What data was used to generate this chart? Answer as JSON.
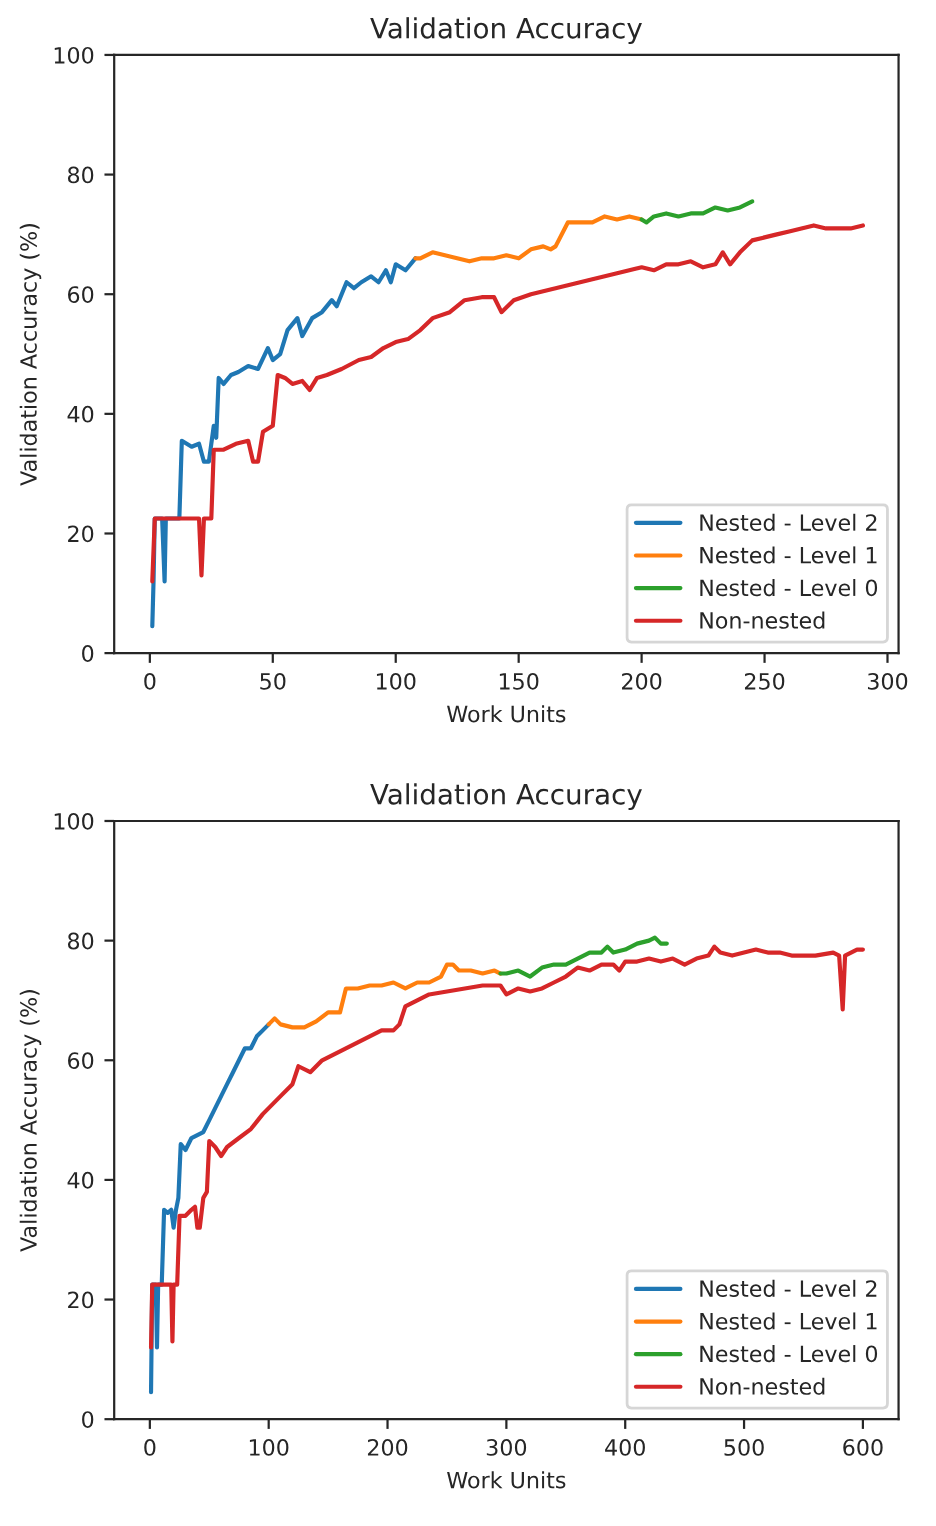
{
  "chart_data": [
    {
      "type": "line",
      "title": "Validation Accuracy",
      "xlabel": "Work Units",
      "ylabel": "Validation Accuracy (%)",
      "xlim": [
        -14.5,
        304.5
      ],
      "xticks": [
        0,
        50,
        100,
        150,
        200,
        250,
        300
      ],
      "ylim": [
        0,
        100
      ],
      "yticks": [
        0,
        20,
        40,
        60,
        80,
        100
      ],
      "grid": false,
      "legend": "bottom right",
      "series": [
        {
          "name": "Nested - Level 2",
          "color": "#1f77b4",
          "x": [
            1,
            1.5,
            2,
            3,
            5,
            6,
            6.5,
            10,
            12,
            13,
            15,
            17,
            20,
            22,
            24,
            25,
            26,
            27,
            28,
            30,
            33,
            36,
            40,
            44,
            48,
            50,
            53,
            56,
            60,
            62,
            66,
            70,
            74,
            76,
            80,
            83,
            86,
            90,
            93,
            96,
            98,
            100,
            104,
            108
          ],
          "values": [
            4.5,
            12,
            22.5,
            22.5,
            22.5,
            12,
            22.5,
            22.5,
            22.5,
            35.5,
            35,
            34.5,
            35,
            32,
            32,
            35,
            38,
            36,
            46,
            45,
            46.5,
            47,
            48,
            47.5,
            51,
            49,
            50,
            54,
            56,
            53,
            56,
            57,
            59,
            58,
            62,
            61,
            62,
            63,
            62,
            64,
            62,
            65,
            64,
            66
          ]
        },
        {
          "name": "Nested - Level 1",
          "color": "#ff7f0e",
          "x": [
            108,
            110,
            115,
            120,
            125,
            130,
            135,
            140,
            145,
            150,
            155,
            160,
            163,
            165,
            170,
            175,
            180,
            185,
            190,
            195,
            200
          ],
          "values": [
            66,
            66,
            67,
            66.5,
            66,
            65.5,
            66,
            66,
            66.5,
            66,
            67.5,
            68,
            67.5,
            68,
            72,
            72,
            72,
            73,
            72.5,
            73,
            72.5
          ]
        },
        {
          "name": "Nested - Level 0",
          "color": "#2ca02c",
          "x": [
            200,
            202,
            205,
            210,
            215,
            220,
            225,
            230,
            235,
            240,
            245
          ],
          "values": [
            72.5,
            72,
            73,
            73.5,
            73,
            73.5,
            73.5,
            74.5,
            74,
            74.5,
            75.5
          ]
        },
        {
          "name": "Non-nested",
          "color": "#d62728",
          "x": [
            1,
            2,
            5,
            10,
            15,
            20,
            21,
            22,
            25,
            26,
            30,
            35,
            40,
            42,
            44,
            46,
            50,
            52,
            55,
            58,
            62,
            65,
            68,
            72,
            78,
            85,
            90,
            95,
            100,
            105,
            110,
            115,
            122,
            128,
            135,
            140,
            143,
            148,
            155,
            160,
            165,
            170,
            175,
            180,
            185,
            190,
            195,
            200,
            205,
            210,
            215,
            220,
            225,
            230,
            233,
            236,
            240,
            245,
            250,
            255,
            260,
            265,
            270,
            275,
            280,
            285,
            290
          ],
          "values": [
            12,
            22.5,
            22.5,
            22.5,
            22.5,
            22.5,
            13,
            22.5,
            22.5,
            34,
            34,
            35,
            35.5,
            32,
            32,
            37,
            38,
            46.5,
            46,
            45,
            45.5,
            44,
            46,
            46.5,
            47.5,
            49,
            49.5,
            51,
            52,
            52.5,
            54,
            56,
            57,
            59,
            59.5,
            59.5,
            57,
            59,
            60,
            60.5,
            61,
            61.5,
            62,
            62.5,
            63,
            63.5,
            64,
            64.5,
            64,
            65,
            65,
            65.5,
            64.5,
            65,
            67,
            65,
            67,
            69,
            69.5,
            70,
            70.5,
            71,
            71.5,
            71,
            71,
            71,
            71.5
          ]
        }
      ]
    },
    {
      "type": "line",
      "title": "Validation Accuracy",
      "xlabel": "Work Units",
      "ylabel": "Validation Accuracy (%)",
      "xlim": [
        -30,
        630
      ],
      "xticks": [
        0,
        100,
        200,
        300,
        400,
        500,
        600
      ],
      "ylim": [
        0,
        100
      ],
      "yticks": [
        0,
        20,
        40,
        60,
        80,
        100
      ],
      "grid": false,
      "legend": "bottom right",
      "series": [
        {
          "name": "Nested - Level 2",
          "color": "#1f77b4",
          "x": [
            1,
            2,
            5,
            6,
            7,
            10,
            12,
            15,
            18,
            20,
            22,
            24,
            26,
            30,
            35,
            40,
            45,
            50,
            55,
            60,
            65,
            70,
            75,
            80,
            85,
            90,
            95,
            100
          ],
          "values": [
            4.5,
            22.5,
            22.5,
            12,
            22.5,
            22.5,
            35,
            34.5,
            35,
            32,
            35,
            37,
            46,
            45,
            47,
            47.5,
            48,
            50,
            52,
            54,
            56,
            58,
            60,
            62,
            62,
            64,
            65,
            66
          ]
        },
        {
          "name": "Nested - Level 1",
          "color": "#ff7f0e",
          "x": [
            100,
            105,
            110,
            120,
            130,
            140,
            150,
            160,
            165,
            175,
            185,
            195,
            205,
            215,
            225,
            235,
            245,
            250,
            255,
            260,
            270,
            280,
            290,
            295
          ],
          "values": [
            66,
            67,
            66,
            65.5,
            65.5,
            66.5,
            68,
            68,
            72,
            72,
            72.5,
            72.5,
            73,
            72,
            73,
            73,
            74,
            76,
            76,
            75,
            75,
            74.5,
            75,
            74.5
          ]
        },
        {
          "name": "Nested - Level 0",
          "color": "#2ca02c",
          "x": [
            295,
            300,
            310,
            320,
            330,
            340,
            350,
            360,
            370,
            380,
            385,
            390,
            400,
            410,
            420,
            425,
            430,
            435
          ],
          "values": [
            74.5,
            74.5,
            75,
            74,
            75.5,
            76,
            76,
            77,
            78,
            78,
            79,
            78,
            78.5,
            79.5,
            80,
            80.5,
            79.5,
            79.5
          ]
        },
        {
          "name": "Non-nested",
          "color": "#d62728",
          "x": [
            1,
            2,
            10,
            18,
            19,
            20,
            23,
            25,
            30,
            35,
            38,
            40,
            42,
            45,
            48,
            50,
            55,
            60,
            65,
            75,
            85,
            95,
            100,
            110,
            120,
            125,
            135,
            145,
            155,
            165,
            175,
            185,
            195,
            205,
            210,
            215,
            225,
            235,
            250,
            265,
            280,
            295,
            300,
            310,
            320,
            330,
            340,
            350,
            360,
            370,
            380,
            390,
            395,
            400,
            410,
            420,
            430,
            440,
            450,
            460,
            470,
            475,
            480,
            490,
            500,
            510,
            520,
            530,
            540,
            560,
            575,
            580,
            583,
            585,
            590,
            595,
            600
          ],
          "values": [
            12,
            22.5,
            22.5,
            22.5,
            13,
            22.5,
            22.5,
            34,
            34,
            35,
            35.5,
            32,
            32,
            37,
            38,
            46.5,
            45.5,
            44,
            45.5,
            47,
            48.5,
            51,
            52,
            54,
            56,
            59,
            58,
            60,
            61,
            62,
            63,
            64,
            65,
            65,
            66,
            69,
            70,
            71,
            71.5,
            72,
            72.5,
            72.5,
            71,
            72,
            71.5,
            72,
            73,
            74,
            75.5,
            75,
            76,
            76,
            75,
            76.5,
            76.5,
            77,
            76.5,
            77,
            76,
            77,
            77.5,
            79,
            78,
            77.5,
            78,
            78.5,
            78,
            78,
            77.5,
            77.5,
            78,
            77.5,
            68.5,
            77.5,
            78,
            78.5,
            78.5
          ]
        }
      ]
    }
  ]
}
